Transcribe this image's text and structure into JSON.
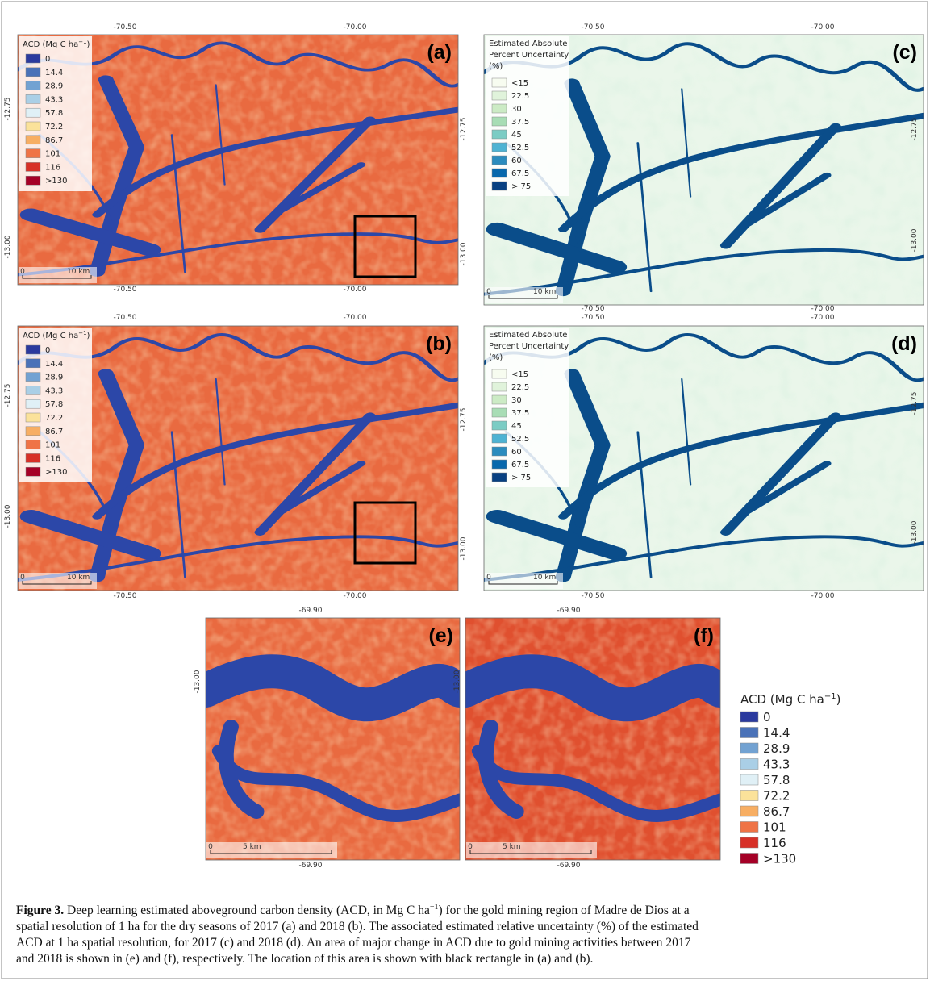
{
  "panels": [
    {
      "label": "(a)",
      "top_ticks": [
        "-70.50",
        "-70.00"
      ],
      "bottom_ticks": [
        "-70.50",
        "-70.00"
      ],
      "left_ticks": [
        "-12.75",
        "-13.00"
      ],
      "right_ticks": [
        "-12.75",
        "-13.00"
      ],
      "legend": {
        "title": [
          "ACD (Mg C ha",
          "−1",
          ")"
        ],
        "items": [
          {
            "label": "0",
            "color": "#2b3a9e"
          },
          {
            "label": "14.4",
            "color": "#4a72b8"
          },
          {
            "label": "28.9",
            "color": "#72a2d2"
          },
          {
            "label": "43.3",
            "color": "#aacfe6"
          },
          {
            "label": "57.8",
            "color": "#e0f0f6"
          },
          {
            "label": "72.2",
            "color": "#fbe29a"
          },
          {
            "label": "86.7",
            "color": "#f7ae63"
          },
          {
            "label": "101",
            "color": "#ef7346"
          },
          {
            "label": "116",
            "color": "#d73027"
          },
          {
            "label": ">130",
            "color": "#a50026"
          }
        ]
      },
      "scale_bar": [
        "0",
        "10 km"
      ]
    },
    {
      "label": "(b)",
      "top_ticks": [
        "-70.50",
        "-70.00"
      ],
      "bottom_ticks": [
        "-70.50",
        "-70.00"
      ],
      "left_ticks": [
        "-12.75",
        "-13.00"
      ],
      "right_ticks": [
        "-12.75",
        "-13.00"
      ],
      "legend": {
        "title": [
          "ACD (Mg C ha",
          "−1",
          ")"
        ],
        "items": [
          {
            "label": "0",
            "color": "#2b3a9e"
          },
          {
            "label": "14.4",
            "color": "#4a72b8"
          },
          {
            "label": "28.9",
            "color": "#72a2d2"
          },
          {
            "label": "43.3",
            "color": "#aacfe6"
          },
          {
            "label": "57.8",
            "color": "#e0f0f6"
          },
          {
            "label": "72.2",
            "color": "#fbe29a"
          },
          {
            "label": "86.7",
            "color": "#f7ae63"
          },
          {
            "label": "101",
            "color": "#ef7346"
          },
          {
            "label": "116",
            "color": "#d73027"
          },
          {
            "label": ">130",
            "color": "#a50026"
          }
        ]
      },
      "scale_bar": [
        "0",
        "10 km"
      ]
    },
    {
      "label": "(c)",
      "top_ticks": [
        "-70.50",
        "-70.00"
      ],
      "bottom_ticks": [
        "-70.50",
        "-70.00"
      ],
      "right_ticks": [
        "-12.75",
        "-13.00"
      ],
      "legend": {
        "title_lines": [
          "Estimated Absolute",
          "Percent Uncertainty",
          "(%)"
        ],
        "items": [
          {
            "label": "<15",
            "color": "#f7fcf0"
          },
          {
            "label": "22.5",
            "color": "#e0f3db"
          },
          {
            "label": "30",
            "color": "#ccebc5"
          },
          {
            "label": "37.5",
            "color": "#a8ddb5"
          },
          {
            "label": "45",
            "color": "#7bccc4"
          },
          {
            "label": "52.5",
            "color": "#4eb3d3"
          },
          {
            "label": "60",
            "color": "#2b8cbe"
          },
          {
            "label": "67.5",
            "color": "#0868ac"
          },
          {
            "label": "> 75",
            "color": "#084081"
          }
        ]
      },
      "scale_bar": [
        "0",
        "10 km"
      ]
    },
    {
      "label": "(d)",
      "top_ticks": [
        "-70.50",
        "-70.00"
      ],
      "bottom_ticks": [
        "-70.50",
        "-70.00"
      ],
      "right_ticks": [
        "-12.75",
        "-13.00"
      ],
      "legend": {
        "title_lines": [
          "Estimated Absolute",
          "Percent Uncertainty",
          "(%)"
        ],
        "items": [
          {
            "label": "<15",
            "color": "#f7fcf0"
          },
          {
            "label": "22.5",
            "color": "#e0f3db"
          },
          {
            "label": "30",
            "color": "#ccebc5"
          },
          {
            "label": "37.5",
            "color": "#a8ddb5"
          },
          {
            "label": "45",
            "color": "#7bccc4"
          },
          {
            "label": "52.5",
            "color": "#4eb3d3"
          },
          {
            "label": "60",
            "color": "#2b8cbe"
          },
          {
            "label": "67.5",
            "color": "#0868ac"
          },
          {
            "label": "> 75",
            "color": "#084081"
          }
        ]
      },
      "scale_bar": [
        "0",
        "10 km"
      ]
    },
    {
      "label": "(e)",
      "top_ticks": [
        "-69.90"
      ],
      "bottom_ticks": [
        "-69.90"
      ],
      "left_ticks": [
        "-13.00"
      ],
      "scale_bar": [
        "0",
        "5 km"
      ]
    },
    {
      "label": "(f)",
      "top_ticks": [
        "-69.90"
      ],
      "bottom_ticks": [
        "-69.90"
      ],
      "left_ticks": [
        "-13.00"
      ],
      "scale_bar": [
        "0",
        "5 km"
      ]
    }
  ],
  "legend": {
    "title": [
      "ACD (Mg C ha",
      "−1",
      ")"
    ],
    "items": [
      {
        "label": "0",
        "color": "#2b3a9e"
      },
      {
        "label": "14.4",
        "color": "#4a72b8"
      },
      {
        "label": "28.9",
        "color": "#72a2d2"
      },
      {
        "label": "43.3",
        "color": "#aacfe6"
      },
      {
        "label": "57.8",
        "color": "#e0f0f6"
      },
      {
        "label": "72.2",
        "color": "#fbe29a"
      },
      {
        "label": "86.7",
        "color": "#f7ae63"
      },
      {
        "label": "101",
        "color": "#ef7346"
      },
      {
        "label": "116",
        "color": "#d73027"
      },
      {
        "label": ">130",
        "color": "#a50026"
      }
    ]
  },
  "caption": {
    "label": "Figure 3.",
    "line1": [
      "Deep learning estimated aboveground carbon density (ACD, in Mg C ha",
      "−1",
      ") for the gold mining region of Madre de Dios at a"
    ],
    "lines": [
      "spatial resolution of 1 ha for the dry seasons of 2017 (a) and 2018 (b). The associated estimated relative uncertainty (%) of the estimated",
      "ACD at 1 ha spatial resolution, for 2017 (c) and 2018 (d). An area of major change in ACD due to gold mining activities between 2017",
      "and 2018 is shown in (e) and (f), respectively. The location of this area is shown with black rectangle in (a) and (b)."
    ]
  }
}
